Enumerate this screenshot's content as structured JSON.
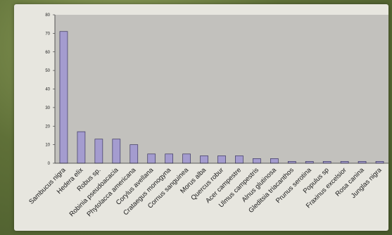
{
  "chart_data": {
    "type": "bar",
    "categories": [
      "Sambucus nigra",
      "Hedera elix",
      "Robus sp.",
      "Robinia pseudoacacia",
      "Phytolacca americana",
      "Corylus avellana",
      "Crataegus monogyna",
      "Cornus sanguinea",
      "Morus alba",
      "Quercus robur",
      "Acer campestre",
      "Ulmus campestris",
      "Alnus glutinosa",
      "Gleditsia triacanthos",
      "Prunus serotina",
      "Populus sp",
      "Fraxinus excelsior",
      "Rosa canina",
      "Junglas nigra"
    ],
    "values": [
      71,
      17,
      13,
      13,
      10,
      5,
      5,
      5,
      4,
      4,
      4,
      2.5,
      2.5,
      1,
      1,
      1,
      1,
      1,
      1
    ],
    "yticks": [
      "0",
      "10",
      "20",
      "30",
      "40",
      "50",
      "60",
      "70",
      "80"
    ],
    "ylim": [
      0,
      80
    ],
    "grid": false,
    "colors": {
      "bar": "#a49ccf",
      "bar_edge": "#3a3560",
      "plot_bg": "#c2c1bd",
      "axis": "#333333"
    }
  }
}
